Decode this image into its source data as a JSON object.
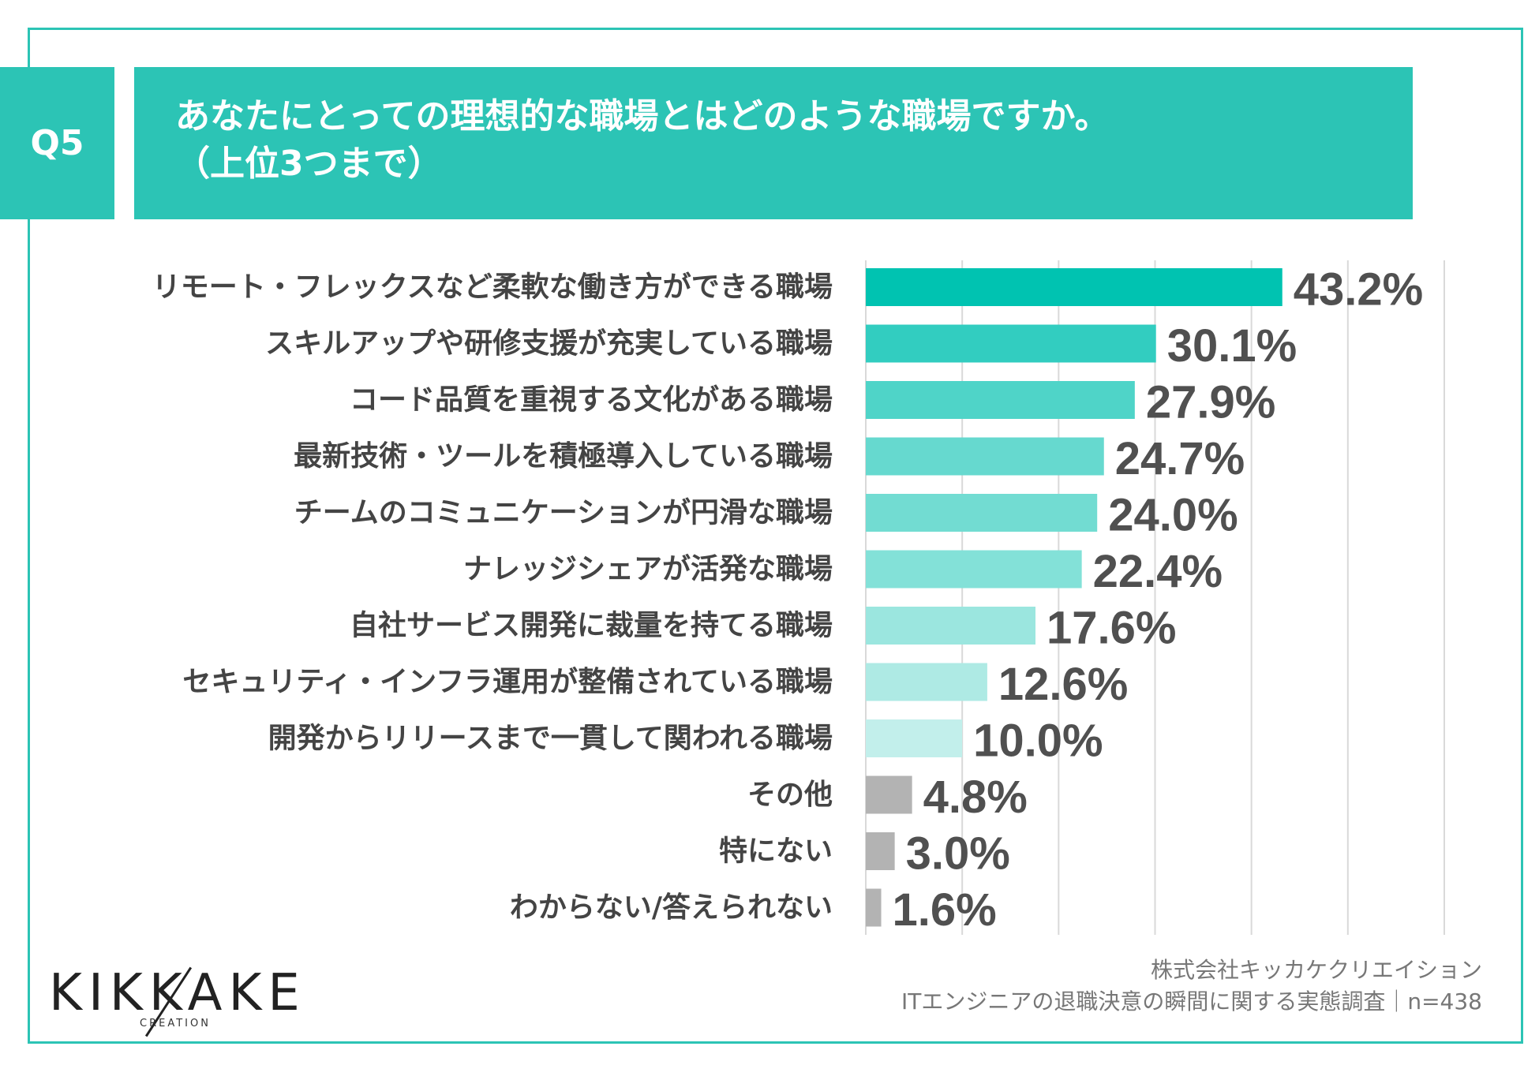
{
  "question": {
    "number": "Q5",
    "title_line1": "あなたにとっての理想的な職場とはどのような職場ですか。",
    "title_line2": "（上位3つまで）"
  },
  "chart_data": {
    "type": "bar",
    "orientation": "horizontal",
    "categories": [
      "リモート・フレックスなど柔軟な働き方ができる職場",
      "スキルアップや研修支援が充実している職場",
      "コード品質を重視する文化がある職場",
      "最新技術・ツールを積極導入している職場",
      "チームのコミュニケーションが円滑な職場",
      "ナレッジシェアが活発な職場",
      "自社サービス開発に裁量を持てる職場",
      "セキュリティ・インフラ運用が整備されている職場",
      "開発からリリースまで一貫して関われる職場",
      "その他",
      "特にない",
      "わからない/答えられない"
    ],
    "values": [
      43.2,
      30.1,
      27.9,
      24.7,
      24.0,
      22.4,
      17.6,
      12.6,
      10.0,
      4.8,
      3.0,
      1.6
    ],
    "value_labels": [
      "43.2%",
      "30.1%",
      "27.9%",
      "24.7%",
      "24.0%",
      "22.4%",
      "17.6%",
      "12.6%",
      "10.0%",
      "4.8%",
      "3.0%",
      "1.6%"
    ],
    "bar_colors": [
      "#00c3b1",
      "#32cdc0",
      "#4fd4c8",
      "#66d9cf",
      "#72dcd2",
      "#83e1d8",
      "#9be6df",
      "#aeeae4",
      "#c2efeb",
      "#b3b3b3",
      "#b3b3b3",
      "#b3b3b3"
    ],
    "xlim": [
      0,
      60
    ],
    "gridlines": [
      0,
      10,
      20,
      30,
      40,
      50,
      60
    ],
    "grid": true
  },
  "logo": {
    "main": "KIKKAKE",
    "sub": "CREATION"
  },
  "source": {
    "company": "株式会社キッカケクリエイション",
    "survey": "ITエンジニアの退職決意の瞬間に関する実態調査｜n=438"
  }
}
